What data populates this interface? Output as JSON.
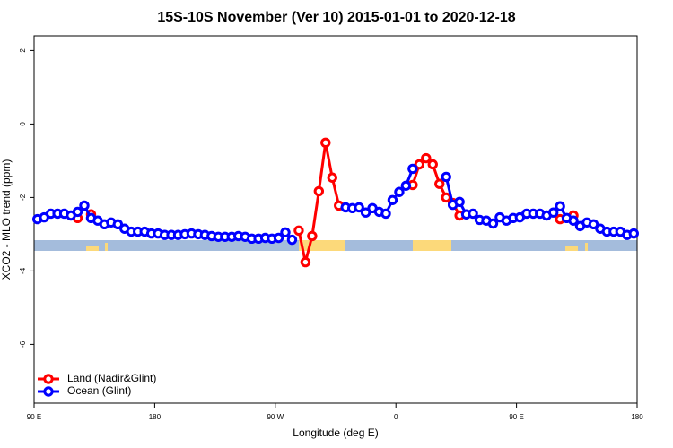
{
  "chart_data": {
    "type": "line",
    "title": "15S-10S November (Ver 10)   2015-01-01 to 2020-12-18",
    "x_label": "Longitude (deg E)",
    "y_label": "XCO2 - MLO trend (ppm)",
    "x": [
      92.5,
      97.5,
      102.5,
      107.5,
      112.5,
      117.5,
      122.5,
      127.5,
      132.5,
      137.5,
      142.5,
      147.5,
      152.5,
      157.5,
      162.5,
      167.5,
      172.5,
      177.5,
      182.5,
      187.5,
      192.5,
      197.5,
      202.5,
      207.5,
      212.5,
      217.5,
      222.5,
      227.5,
      232.5,
      237.5,
      242.5,
      247.5,
      252.5,
      257.5,
      262.5,
      267.5,
      272.5,
      277.5,
      282.5,
      287.5,
      292.5,
      297.5,
      302.5,
      307.5,
      312.5,
      317.5,
      322.5,
      327.5,
      332.5,
      337.5,
      342.5,
      347.5,
      352.5,
      357.5,
      362.5,
      367.5,
      372.5,
      377.5,
      382.5,
      387.5,
      392.5,
      397.5,
      402.5,
      407.5,
      412.5,
      417.5,
      422.5,
      427.5,
      432.5,
      437.5,
      442.5,
      447.5,
      452.5,
      457.5,
      462.5,
      467.5,
      472.5,
      477.5,
      482.5,
      487.5,
      492.5,
      497.5,
      502.5,
      507.5,
      512.5,
      517.5,
      522.5,
      527.5,
      532.5,
      537.5
    ],
    "series": [
      {
        "name": "Land (Nadir&Glint)",
        "color": "#ff0000",
        "values": [
          null,
          null,
          null,
          null,
          null,
          null,
          -2.56,
          null,
          -2.46,
          null,
          null,
          null,
          null,
          null,
          null,
          null,
          null,
          null,
          null,
          null,
          null,
          null,
          null,
          null,
          null,
          null,
          null,
          null,
          null,
          null,
          null,
          null,
          null,
          null,
          null,
          null,
          null,
          null,
          null,
          -2.9,
          -3.76,
          -3.05,
          -1.83,
          -0.51,
          -1.46,
          -2.22,
          null,
          null,
          null,
          null,
          null,
          null,
          null,
          null,
          null,
          null,
          -1.66,
          -1.1,
          -0.93,
          -1.1,
          -1.63,
          -2.0,
          -2.15,
          -2.49,
          null,
          null,
          null,
          null,
          null,
          null,
          null,
          null,
          null,
          null,
          null,
          null,
          null,
          null,
          -2.59,
          null,
          -2.49,
          null,
          null,
          null,
          null,
          null,
          null,
          null,
          null,
          null
        ]
      },
      {
        "name": "Ocean (Glint)",
        "color": "#0000ff",
        "values": [
          -2.59,
          -2.54,
          -2.44,
          -2.44,
          -2.44,
          -2.49,
          -2.39,
          -2.22,
          -2.56,
          -2.63,
          -2.73,
          -2.68,
          -2.73,
          -2.85,
          -2.93,
          -2.93,
          -2.93,
          -2.98,
          -2.98,
          -3.02,
          -3.02,
          -3.02,
          -3.0,
          -2.98,
          -3.0,
          -3.02,
          -3.05,
          -3.07,
          -3.07,
          -3.07,
          -3.05,
          -3.07,
          -3.12,
          -3.12,
          -3.1,
          -3.12,
          -3.1,
          -2.95,
          -3.15,
          null,
          null,
          null,
          null,
          null,
          null,
          null,
          -2.27,
          -2.29,
          -2.27,
          -2.41,
          -2.29,
          -2.39,
          -2.44,
          -2.07,
          -1.85,
          -1.68,
          -1.22,
          null,
          null,
          null,
          null,
          -1.44,
          -2.2,
          -2.12,
          -2.46,
          -2.44,
          -2.61,
          -2.63,
          -2.71,
          -2.54,
          -2.63,
          -2.56,
          -2.54,
          -2.44,
          -2.44,
          -2.44,
          -2.49,
          -2.41,
          -2.24,
          -2.56,
          -2.63,
          -2.78,
          -2.68,
          -2.73,
          -2.85,
          -2.93,
          -2.93,
          -2.93,
          -3.02,
          -2.98
        ]
      }
    ],
    "xlim": [
      90,
      540
    ],
    "xticks": [
      {
        "value": 90,
        "label": "90 E"
      },
      180,
      {
        "value": 270,
        "label": "90 W"
      },
      {
        "value": 360,
        "label": "0"
      },
      {
        "value": 450,
        "label": "90 E"
      },
      {
        "value": 540,
        "label": "180"
      }
    ],
    "ylim": [
      -7.6,
      2.4
    ],
    "yticks": [
      -6,
      -4,
      -2,
      0,
      2
    ],
    "legend": "bottom-left"
  }
}
